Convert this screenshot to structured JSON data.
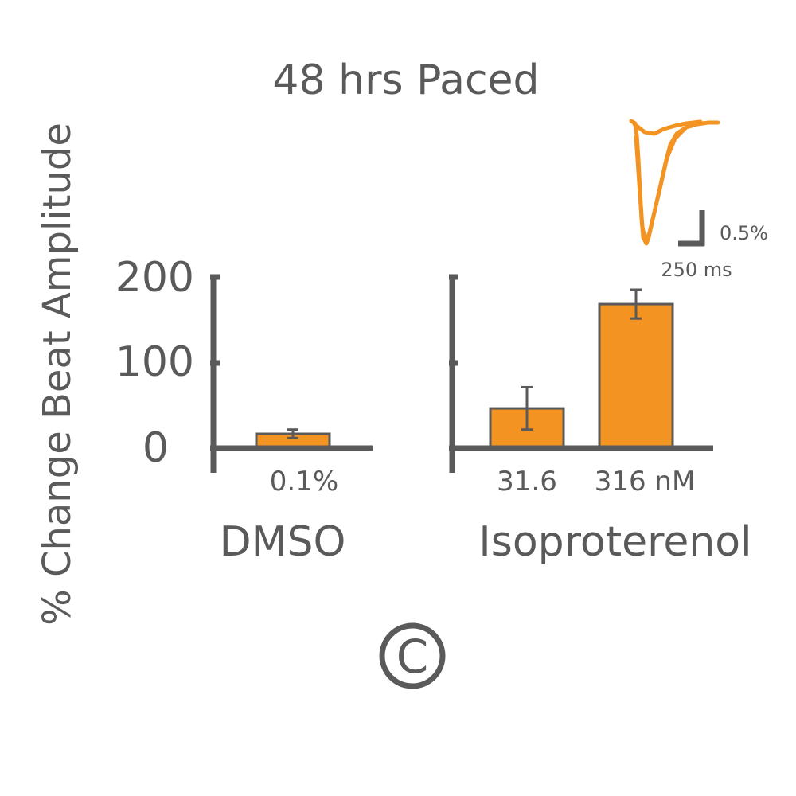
{
  "chart_data": {
    "type": "bar",
    "title": "48 hrs Paced",
    "ylabel": "% Change Beat Amplitude",
    "ylim": [
      0,
      200
    ],
    "yticks": [
      "0",
      "100",
      "200"
    ],
    "groups": [
      {
        "name": "DMSO",
        "categories": [
          "0.1%"
        ],
        "values": [
          15
        ],
        "errors": [
          5
        ]
      },
      {
        "name": "Isoproterenol",
        "categories": [
          "31.6",
          "316 nM"
        ],
        "values": [
          45,
          168
        ],
        "errors": [
          25,
          17
        ]
      }
    ],
    "grid": false,
    "legend": "none",
    "colors": {
      "bar": "#f39422",
      "axis": "#5a5a5a",
      "trace": "#f39422"
    }
  },
  "inset": {
    "scale_y_label": "0.5%",
    "scale_x_label": "250 ms"
  },
  "panel_mark": "C"
}
